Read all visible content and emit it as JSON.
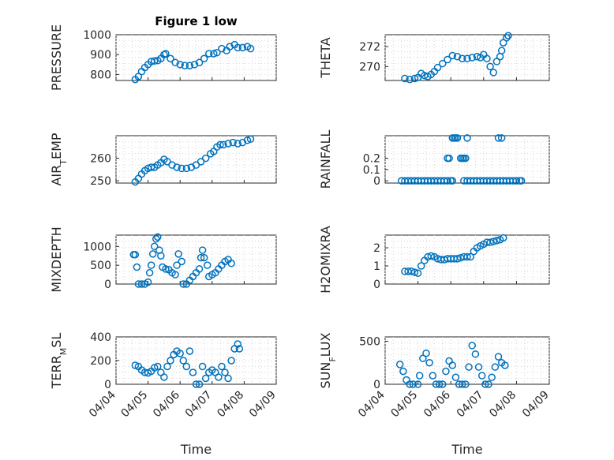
{
  "chart_data": [
    {
      "type": "scatter",
      "title": "Figure 1 low",
      "ylabel": "PRESSURE",
      "ylim": [
        770,
        1000
      ],
      "yticks": [
        800,
        900,
        1000
      ],
      "xlim": [
        "04/04",
        "04/09"
      ],
      "xticks": [],
      "color": "#0072bd",
      "points": [
        [
          0.6,
          775
        ],
        [
          0.7,
          790
        ],
        [
          0.8,
          815
        ],
        [
          0.9,
          835
        ],
        [
          1.0,
          850
        ],
        [
          1.1,
          865
        ],
        [
          1.2,
          868
        ],
        [
          1.3,
          870
        ],
        [
          1.4,
          880
        ],
        [
          1.5,
          900
        ],
        [
          1.55,
          905
        ],
        [
          1.7,
          880
        ],
        [
          1.85,
          860
        ],
        [
          2.0,
          850
        ],
        [
          2.15,
          845
        ],
        [
          2.3,
          845
        ],
        [
          2.45,
          850
        ],
        [
          2.6,
          860
        ],
        [
          2.75,
          880
        ],
        [
          2.9,
          905
        ],
        [
          3.05,
          905
        ],
        [
          3.15,
          910
        ],
        [
          3.3,
          930
        ],
        [
          3.45,
          920
        ],
        [
          3.55,
          940
        ],
        [
          3.7,
          950
        ],
        [
          3.8,
          935
        ],
        [
          3.95,
          935
        ],
        [
          4.1,
          940
        ],
        [
          4.2,
          930
        ]
      ]
    },
    {
      "type": "scatter",
      "title": "",
      "ylabel": "THETA",
      "ylim": [
        268.6,
        273.2
      ],
      "yticks": [
        270,
        272
      ],
      "xlim": [
        "04/04",
        "04/09"
      ],
      "xticks": [],
      "color": "#0072bd",
      "points": [
        [
          0.6,
          268.8
        ],
        [
          0.75,
          268.7
        ],
        [
          0.9,
          268.8
        ],
        [
          1.0,
          268.9
        ],
        [
          1.1,
          269.3
        ],
        [
          1.2,
          269.1
        ],
        [
          1.3,
          269.0
        ],
        [
          1.4,
          269.2
        ],
        [
          1.5,
          269.5
        ],
        [
          1.6,
          269.9
        ],
        [
          1.75,
          270.3
        ],
        [
          1.9,
          270.7
        ],
        [
          2.05,
          271.1
        ],
        [
          2.2,
          271.0
        ],
        [
          2.35,
          270.8
        ],
        [
          2.5,
          270.8
        ],
        [
          2.65,
          270.9
        ],
        [
          2.8,
          271.0
        ],
        [
          2.9,
          270.9
        ],
        [
          3.0,
          271.2
        ],
        [
          3.1,
          270.8
        ],
        [
          3.2,
          270.0
        ],
        [
          3.3,
          269.4
        ],
        [
          3.4,
          270.5
        ],
        [
          3.5,
          271.0
        ],
        [
          3.55,
          271.6
        ],
        [
          3.6,
          272.4
        ],
        [
          3.7,
          272.9
        ],
        [
          3.75,
          273.1
        ]
      ]
    },
    {
      "type": "scatter",
      "title": "",
      "ylabel_main": "AIR",
      "ylabel_sub": "T",
      "ylabel_rest": "EMP",
      "ylim": [
        249,
        270
      ],
      "yticks": [
        250,
        260
      ],
      "xlim": [
        "04/04",
        "04/09"
      ],
      "xticks": [],
      "color": "#0072bd",
      "points": [
        [
          0.6,
          249.5
        ],
        [
          0.7,
          251
        ],
        [
          0.8,
          253
        ],
        [
          0.9,
          254.5
        ],
        [
          1.0,
          255.5
        ],
        [
          1.1,
          256
        ],
        [
          1.2,
          256
        ],
        [
          1.3,
          257
        ],
        [
          1.4,
          258
        ],
        [
          1.5,
          259.5
        ],
        [
          1.6,
          258.5
        ],
        [
          1.75,
          257
        ],
        [
          1.9,
          256
        ],
        [
          2.05,
          255.5
        ],
        [
          2.2,
          255.5
        ],
        [
          2.35,
          256
        ],
        [
          2.5,
          257
        ],
        [
          2.65,
          258.5
        ],
        [
          2.8,
          260
        ],
        [
          2.95,
          262
        ],
        [
          3.05,
          263
        ],
        [
          3.15,
          265
        ],
        [
          3.25,
          266
        ],
        [
          3.35,
          266
        ],
        [
          3.5,
          266.5
        ],
        [
          3.65,
          267
        ],
        [
          3.8,
          266.5
        ],
        [
          3.95,
          267
        ],
        [
          4.1,
          268
        ],
        [
          4.2,
          268.5
        ]
      ]
    },
    {
      "type": "scatter",
      "title": "",
      "ylabel": "RAINFALL",
      "ylim": [
        -0.02,
        0.4
      ],
      "yticks": [
        0,
        0.1,
        0.2
      ],
      "xlim": [
        "04/04",
        "04/09"
      ],
      "xticks": [],
      "color": "#0072bd",
      "points": [
        [
          0.5,
          0
        ],
        [
          0.6,
          0
        ],
        [
          0.7,
          0
        ],
        [
          0.8,
          0
        ],
        [
          0.9,
          0
        ],
        [
          1.0,
          0
        ],
        [
          1.1,
          0
        ],
        [
          1.2,
          0
        ],
        [
          1.3,
          0
        ],
        [
          1.4,
          0
        ],
        [
          1.5,
          0
        ],
        [
          1.6,
          0
        ],
        [
          1.7,
          0
        ],
        [
          1.8,
          0
        ],
        [
          1.9,
          0
        ],
        [
          2.0,
          0
        ],
        [
          2.05,
          0
        ],
        [
          1.9,
          0.2
        ],
        [
          1.95,
          0.2
        ],
        [
          2.05,
          0.38
        ],
        [
          2.1,
          0.38
        ],
        [
          2.15,
          0.38
        ],
        [
          2.2,
          0.38
        ],
        [
          2.3,
          0.2
        ],
        [
          2.35,
          0.2
        ],
        [
          2.4,
          0.2
        ],
        [
          2.45,
          0.2
        ],
        [
          2.5,
          0.38
        ],
        [
          2.4,
          0
        ],
        [
          2.5,
          0
        ],
        [
          2.6,
          0
        ],
        [
          2.7,
          0
        ],
        [
          2.8,
          0
        ],
        [
          2.9,
          0
        ],
        [
          3.0,
          0
        ],
        [
          3.1,
          0
        ],
        [
          3.2,
          0
        ],
        [
          3.3,
          0
        ],
        [
          3.4,
          0
        ],
        [
          3.5,
          0
        ],
        [
          3.6,
          0
        ],
        [
          3.45,
          0.38
        ],
        [
          3.55,
          0.38
        ],
        [
          3.7,
          0
        ],
        [
          3.8,
          0
        ],
        [
          3.9,
          0
        ],
        [
          4.0,
          0
        ],
        [
          4.1,
          0
        ],
        [
          4.15,
          0
        ]
      ]
    },
    {
      "type": "scatter",
      "title": "",
      "ylabel": "MIXDEPTH",
      "ylim": [
        0,
        1300
      ],
      "yticks": [
        0,
        500,
        1000
      ],
      "xlim": [
        "04/04",
        "04/09"
      ],
      "xticks": [],
      "color": "#0072bd",
      "points": [
        [
          0.55,
          780
        ],
        [
          0.6,
          780
        ],
        [
          0.65,
          450
        ],
        [
          0.7,
          0
        ],
        [
          0.8,
          0
        ],
        [
          0.9,
          0
        ],
        [
          1.0,
          50
        ],
        [
          1.05,
          300
        ],
        [
          1.1,
          500
        ],
        [
          1.15,
          800
        ],
        [
          1.2,
          1000
        ],
        [
          1.25,
          1200
        ],
        [
          1.3,
          1250
        ],
        [
          1.35,
          900
        ],
        [
          1.4,
          750
        ],
        [
          1.45,
          450
        ],
        [
          1.55,
          400
        ],
        [
          1.65,
          380
        ],
        [
          1.75,
          300
        ],
        [
          1.85,
          250
        ],
        [
          1.9,
          500
        ],
        [
          1.95,
          800
        ],
        [
          2.05,
          600
        ],
        [
          2.1,
          0
        ],
        [
          2.2,
          0
        ],
        [
          2.3,
          100
        ],
        [
          2.4,
          200
        ],
        [
          2.5,
          300
        ],
        [
          2.6,
          400
        ],
        [
          2.65,
          700
        ],
        [
          2.7,
          900
        ],
        [
          2.75,
          700
        ],
        [
          2.85,
          500
        ],
        [
          2.9,
          200
        ],
        [
          3.0,
          250
        ],
        [
          3.1,
          300
        ],
        [
          3.2,
          400
        ],
        [
          3.3,
          500
        ],
        [
          3.4,
          600
        ],
        [
          3.5,
          650
        ],
        [
          3.6,
          550
        ]
      ]
    },
    {
      "type": "scatter",
      "title": "",
      "ylabel": "H2OMIXRA",
      "ylim": [
        0,
        2.7
      ],
      "yticks": [
        0,
        1,
        2
      ],
      "xlim": [
        "04/04",
        "04/09"
      ],
      "xticks": [],
      "color": "#0072bd",
      "points": [
        [
          0.6,
          0.7
        ],
        [
          0.7,
          0.7
        ],
        [
          0.8,
          0.7
        ],
        [
          0.9,
          0.65
        ],
        [
          1.0,
          0.6
        ],
        [
          1.1,
          1.0
        ],
        [
          1.2,
          1.3
        ],
        [
          1.3,
          1.5
        ],
        [
          1.4,
          1.55
        ],
        [
          1.5,
          1.5
        ],
        [
          1.6,
          1.4
        ],
        [
          1.7,
          1.35
        ],
        [
          1.8,
          1.35
        ],
        [
          1.9,
          1.4
        ],
        [
          2.0,
          1.4
        ],
        [
          2.1,
          1.4
        ],
        [
          2.2,
          1.4
        ],
        [
          2.3,
          1.45
        ],
        [
          2.4,
          1.5
        ],
        [
          2.5,
          1.5
        ],
        [
          2.6,
          1.5
        ],
        [
          2.7,
          1.8
        ],
        [
          2.8,
          2.0
        ],
        [
          2.9,
          2.1
        ],
        [
          3.0,
          2.2
        ],
        [
          3.1,
          2.3
        ],
        [
          3.2,
          2.3
        ],
        [
          3.3,
          2.35
        ],
        [
          3.4,
          2.4
        ],
        [
          3.5,
          2.45
        ],
        [
          3.6,
          2.55
        ]
      ]
    },
    {
      "type": "scatter",
      "title": "",
      "ylabel_main": "TERR",
      "ylabel_sub": "M",
      "ylabel_rest": "SL",
      "ylim": [
        0,
        400
      ],
      "yticks": [
        0,
        200,
        400
      ],
      "xlim": [
        "04/04",
        "04/09"
      ],
      "xticks": [
        "04/04",
        "04/05",
        "04/06",
        "04/07",
        "04/08",
        "04/09"
      ],
      "xlabel": "Time",
      "color": "#0072bd",
      "points": [
        [
          0.6,
          160
        ],
        [
          0.7,
          150
        ],
        [
          0.8,
          120
        ],
        [
          0.9,
          100
        ],
        [
          1.0,
          95
        ],
        [
          1.1,
          110
        ],
        [
          1.2,
          140
        ],
        [
          1.3,
          150
        ],
        [
          1.4,
          100
        ],
        [
          1.5,
          60
        ],
        [
          1.6,
          150
        ],
        [
          1.7,
          200
        ],
        [
          1.8,
          250
        ],
        [
          1.9,
          280
        ],
        [
          2.0,
          260
        ],
        [
          2.1,
          200
        ],
        [
          2.2,
          150
        ],
        [
          2.3,
          280
        ],
        [
          2.4,
          100
        ],
        [
          2.5,
          0
        ],
        [
          2.6,
          0
        ],
        [
          2.7,
          150
        ],
        [
          2.8,
          50
        ],
        [
          2.9,
          100
        ],
        [
          3.0,
          120
        ],
        [
          3.1,
          100
        ],
        [
          3.2,
          60
        ],
        [
          3.3,
          150
        ],
        [
          3.4,
          100
        ],
        [
          3.5,
          50
        ],
        [
          3.6,
          200
        ],
        [
          3.7,
          300
        ],
        [
          3.8,
          340
        ],
        [
          3.85,
          300
        ]
      ]
    },
    {
      "type": "scatter",
      "title": "",
      "ylabel_main": "SUN",
      "ylabel_sub": "F",
      "ylabel_rest": "LUX",
      "ylim": [
        0,
        550
      ],
      "yticks": [
        0,
        500
      ],
      "xlim": [
        "04/04",
        "04/09"
      ],
      "xticks": [
        "04/04",
        "04/05",
        "04/06",
        "04/07",
        "04/08",
        "04/09"
      ],
      "xlabel": "Time",
      "color": "#0072bd",
      "points": [
        [
          0.45,
          230
        ],
        [
          0.55,
          150
        ],
        [
          0.65,
          50
        ],
        [
          0.75,
          0
        ],
        [
          0.85,
          0
        ],
        [
          1.0,
          0
        ],
        [
          1.05,
          100
        ],
        [
          1.15,
          300
        ],
        [
          1.25,
          360
        ],
        [
          1.35,
          250
        ],
        [
          1.45,
          100
        ],
        [
          1.55,
          0
        ],
        [
          1.65,
          0
        ],
        [
          1.75,
          0
        ],
        [
          1.85,
          150
        ],
        [
          1.95,
          270
        ],
        [
          2.05,
          220
        ],
        [
          2.15,
          80
        ],
        [
          2.25,
          0
        ],
        [
          2.35,
          0
        ],
        [
          2.45,
          0
        ],
        [
          2.55,
          200
        ],
        [
          2.65,
          450
        ],
        [
          2.75,
          350
        ],
        [
          2.85,
          200
        ],
        [
          2.95,
          100
        ],
        [
          3.05,
          0
        ],
        [
          3.15,
          0
        ],
        [
          3.25,
          80
        ],
        [
          3.35,
          200
        ],
        [
          3.45,
          320
        ],
        [
          3.55,
          250
        ],
        [
          3.65,
          220
        ]
      ]
    }
  ]
}
